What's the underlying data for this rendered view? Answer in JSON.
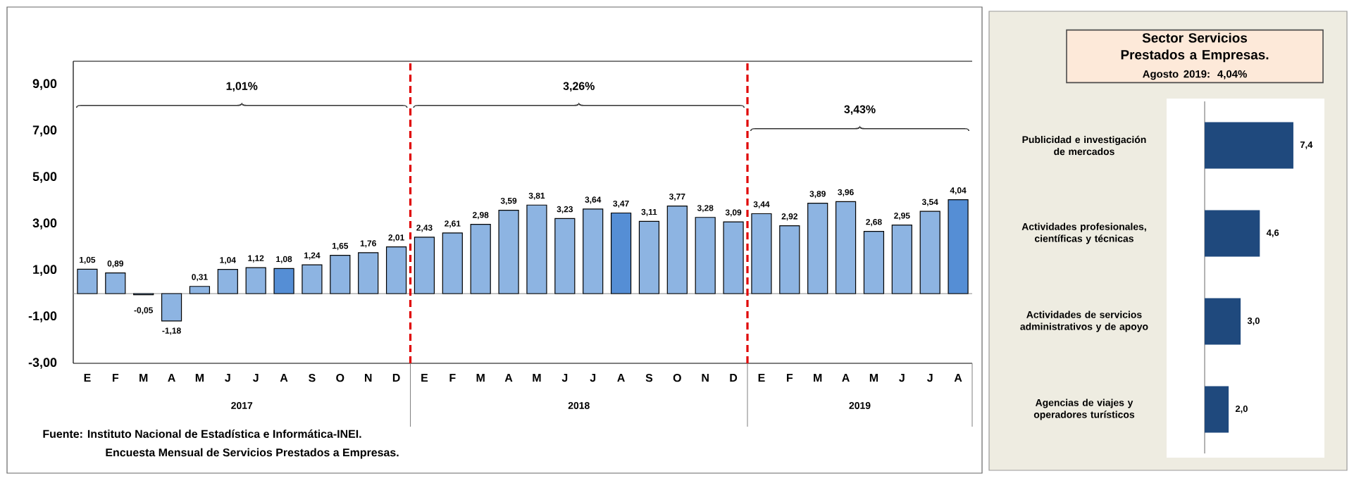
{
  "chart_data": [
    {
      "type": "bar",
      "categories": [
        "E",
        "F",
        "M",
        "A",
        "M",
        "J",
        "J",
        "A",
        "S",
        "O",
        "N",
        "D",
        "E",
        "F",
        "M",
        "A",
        "M",
        "J",
        "J",
        "A",
        "S",
        "O",
        "N",
        "D",
        "E",
        "F",
        "M",
        "A",
        "M",
        "J",
        "J",
        "A"
      ],
      "values": [
        1.05,
        0.89,
        -0.05,
        -1.18,
        0.31,
        1.04,
        1.12,
        1.08,
        1.24,
        1.65,
        1.76,
        2.01,
        2.43,
        2.61,
        2.98,
        3.59,
        3.81,
        3.23,
        3.64,
        3.47,
        3.11,
        3.77,
        3.28,
        3.09,
        3.44,
        2.92,
        3.89,
        3.96,
        2.68,
        2.95,
        3.54,
        4.04
      ],
      "value_labels": [
        "1,05",
        "0,89",
        "-0,05",
        "-1,18",
        "0,31",
        "1,04",
        "1,12",
        "1,08",
        "1,24",
        "1,65",
        "1,76",
        "2,01",
        "2,43",
        "2,61",
        "2,98",
        "3,59",
        "3,81",
        "3,23",
        "3,64",
        "3,47",
        "3,11",
        "3,77",
        "3,28",
        "3,09",
        "3,44",
        "2,92",
        "3,89",
        "3,96",
        "2,68",
        "2,95",
        "3,54",
        "4,04"
      ],
      "colors": [
        "#8db4e2",
        "#8db4e2",
        "#8db4e2",
        "#8db4e2",
        "#8db4e2",
        "#8db4e2",
        "#8db4e2",
        "#558ed5",
        "#8db4e2",
        "#8db4e2",
        "#8db4e2",
        "#8db4e2",
        "#8db4e2",
        "#8db4e2",
        "#8db4e2",
        "#8db4e2",
        "#8db4e2",
        "#8db4e2",
        "#8db4e2",
        "#558ed5",
        "#8db4e2",
        "#8db4e2",
        "#8db4e2",
        "#8db4e2",
        "#8db4e2",
        "#8db4e2",
        "#8db4e2",
        "#8db4e2",
        "#8db4e2",
        "#8db4e2",
        "#8db4e2",
        "#558ed5"
      ],
      "ylim": [
        -3,
        10
      ],
      "yticks": [
        {
          "value": -3,
          "label": "-3,00"
        },
        {
          "value": -1,
          "label": "-1,00"
        },
        {
          "value": 1,
          "label": "1,00"
        },
        {
          "value": 3,
          "label": "3,00"
        },
        {
          "value": 5,
          "label": "5,00"
        },
        {
          "value": 7,
          "label": "7,00"
        },
        {
          "value": 9,
          "label": "9,00"
        }
      ],
      "annotations": [
        "1,01%",
        "3,26%",
        "3,43%",
        "2017",
        "2018",
        "2019",
        "Fuente:  Instituto Nacional de Estadística e Informática-INEI.",
        "Encuesta Mensual de Servicios Prestados a Empresas."
      ]
    },
    {
      "type": "bar",
      "orientation": "horizontal",
      "title": "Sector Servicios Prestados a Empresas.",
      "subtitle": "Agosto 2019: 4,04%",
      "categories": [
        "Publicidad e investigación de mercados",
        "Actividades profesionales, científicas y técnicas",
        "Actividades de servicios administrativos y de apoyo",
        "Agencias de viajes y operadores turísticos"
      ],
      "values": [
        7.4,
        4.6,
        3.0,
        2.0
      ],
      "value_labels": [
        "7,4",
        "4,6",
        "3,0",
        "2,0"
      ],
      "color": "#1f497d",
      "tick_labels": "y"
    }
  ]
}
